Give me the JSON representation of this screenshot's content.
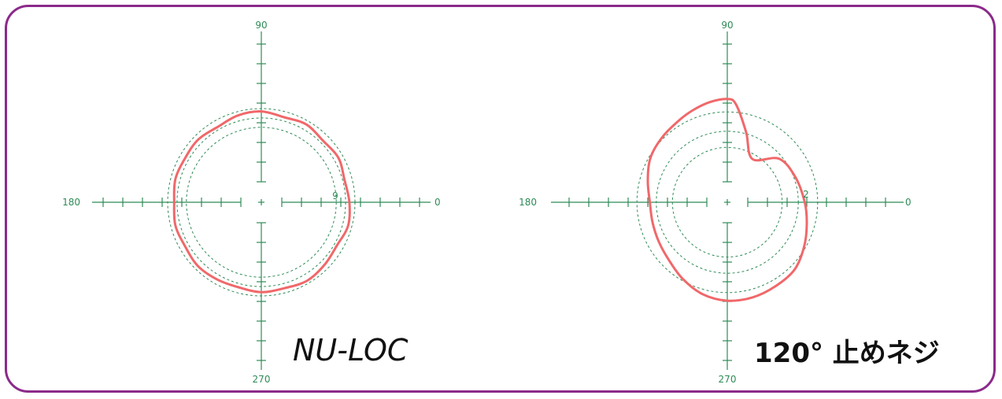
{
  "chart_data": [
    {
      "type": "polar",
      "caption": "NU-LOC",
      "angle_labels": {
        "right": "0",
        "top": "90",
        "left": "180",
        "bottom": "270"
      },
      "scale_label": "9",
      "rings": [
        8,
        9,
        10
      ],
      "grid": true,
      "series": [
        {
          "color": "#f0686a",
          "theta_deg": [
            0,
            15,
            30,
            45,
            60,
            75,
            90,
            105,
            120,
            135,
            150,
            165,
            180,
            195,
            210,
            225,
            240,
            255,
            270,
            285,
            300,
            315,
            330,
            345
          ],
          "r": [
            9.4,
            9.2,
            9.5,
            9.3,
            9.6,
            9.4,
            9.7,
            9.6,
            9.3,
            9.5,
            9.4,
            9.5,
            9.3,
            9.5,
            9.4,
            9.6,
            9.5,
            9.4,
            9.6,
            9.5,
            9.7,
            9.5,
            9.3,
            9.6
          ]
        }
      ]
    },
    {
      "type": "polar",
      "caption": "120°  止めネジ",
      "angle_labels": {
        "right": "0",
        "top": "90",
        "left": "180",
        "bottom": "270"
      },
      "scale_label": "2",
      "rings": [
        1.7,
        2.2,
        2.8
      ],
      "grid": true,
      "series": [
        {
          "color": "#f0686a",
          "theta_deg": [
            0,
            20,
            40,
            60,
            75,
            85,
            90,
            100,
            110,
            120,
            135,
            150,
            165,
            180,
            195,
            210,
            225,
            240,
            255,
            270,
            285,
            300,
            315,
            330,
            345
          ],
          "r": [
            2.4,
            2.25,
            2.1,
            1.55,
            2.25,
            3.05,
            3.2,
            3.15,
            3.05,
            2.95,
            2.85,
            2.75,
            2.55,
            2.4,
            2.4,
            2.45,
            2.55,
            2.75,
            2.95,
            3.05,
            3.05,
            3.0,
            2.95,
            2.75,
            2.55
          ]
        }
      ]
    }
  ]
}
